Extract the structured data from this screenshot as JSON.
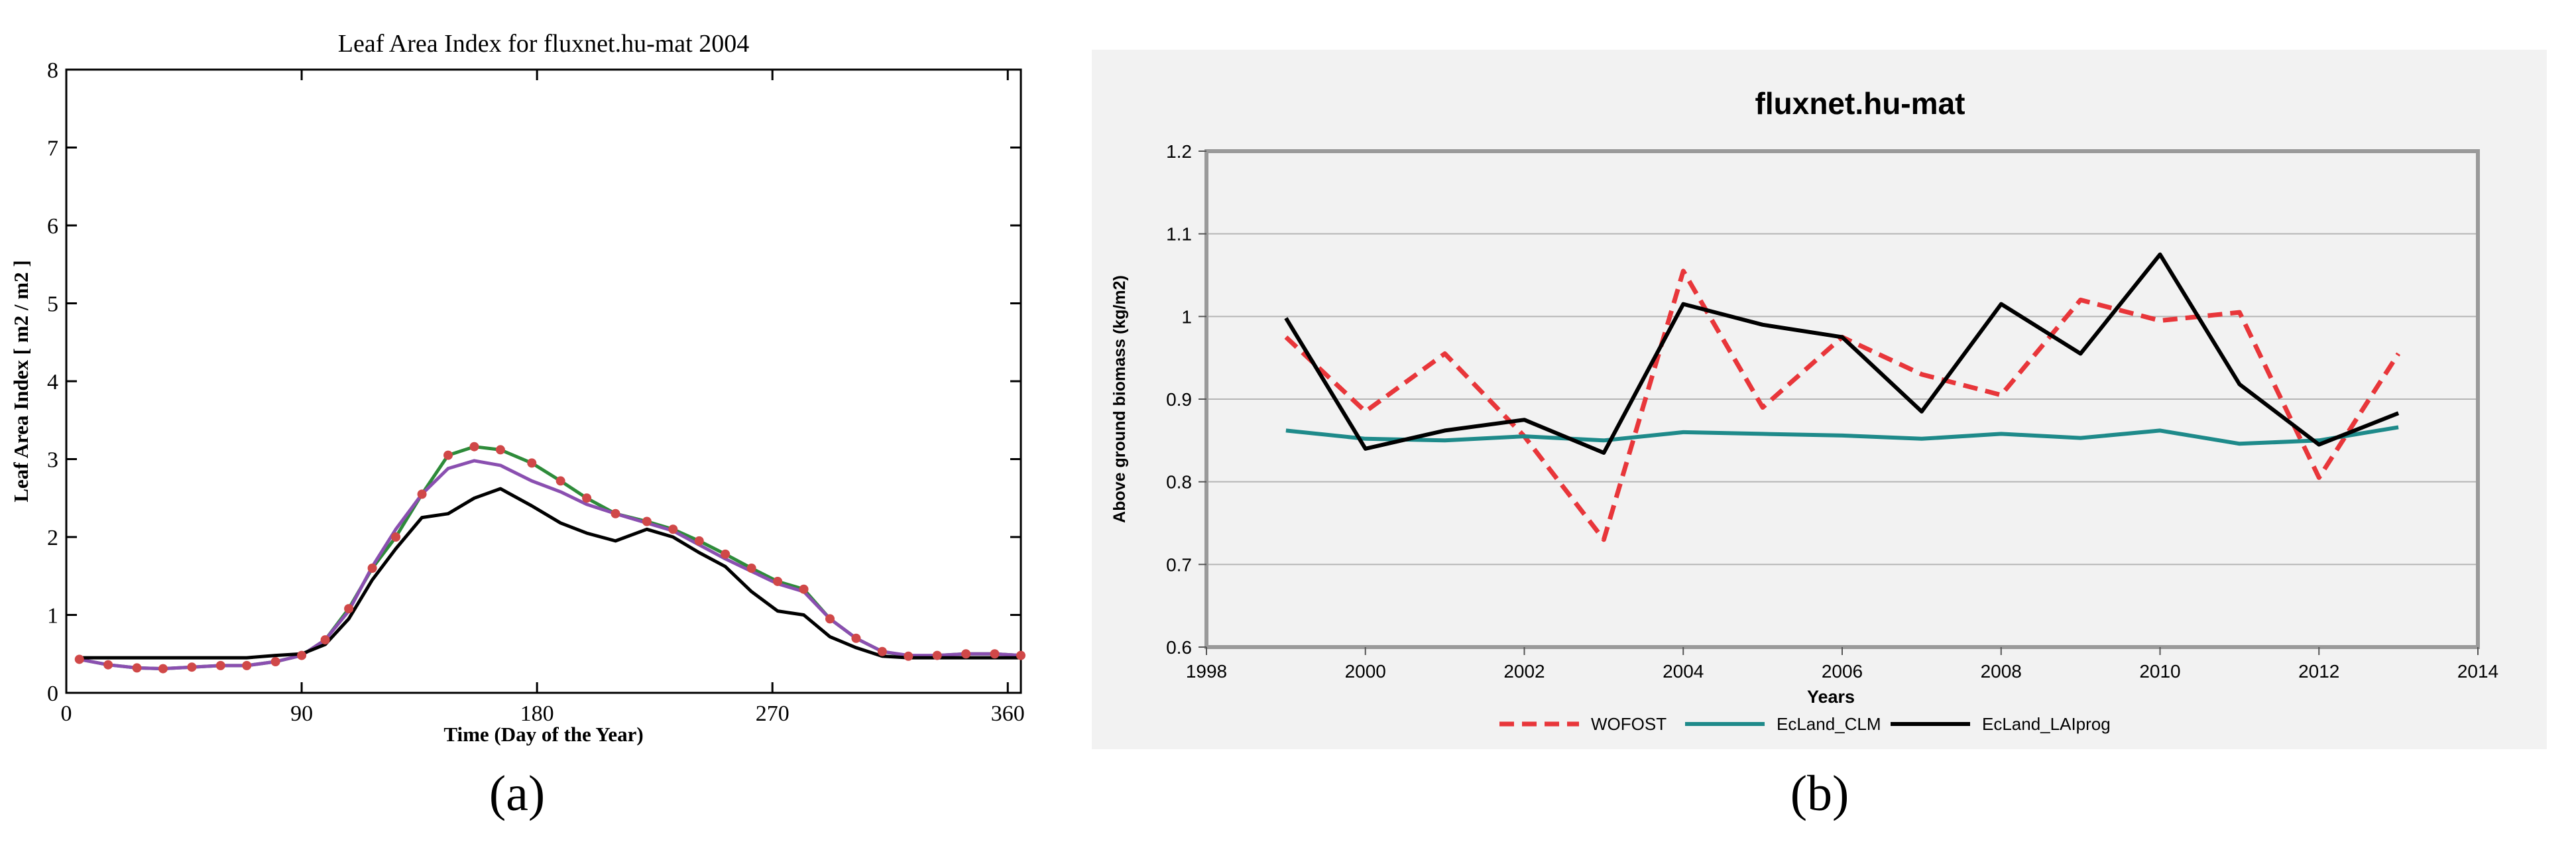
{
  "chart_data": [
    {
      "type": "line",
      "panel_label": "(a)",
      "title": "Leaf Area Index for fluxnet.hu-mat 2004",
      "xlabel": "Time (Day of the Year)",
      "ylabel": "Leaf Area Index [ m2 / m2 ]",
      "xlim": [
        0,
        365
      ],
      "ylim": [
        0,
        8
      ],
      "xticks": [
        "0",
        "90",
        "180",
        "270",
        "360"
      ],
      "yticks": [
        "0",
        "1",
        "2",
        "3",
        "4",
        "5",
        "6",
        "7",
        "8"
      ],
      "legend": "none",
      "series": [
        {
          "name": "green-markers",
          "color": "#2e8b3a",
          "marker": "circle",
          "marker_color": "#d04848",
          "x": [
            5,
            16,
            27,
            37,
            48,
            59,
            69,
            80,
            90,
            99,
            108,
            117,
            126,
            136,
            146,
            156,
            166,
            178,
            189,
            199,
            210,
            222,
            232,
            242,
            252,
            262,
            272,
            282,
            292,
            302,
            312,
            322,
            333,
            344,
            355,
            365
          ],
          "values": [
            0.43,
            0.36,
            0.32,
            0.31,
            0.33,
            0.35,
            0.35,
            0.4,
            0.48,
            0.68,
            1.08,
            1.6,
            2.0,
            2.55,
            3.05,
            3.16,
            3.12,
            2.95,
            2.72,
            2.5,
            2.3,
            2.2,
            2.1,
            1.95,
            1.78,
            1.6,
            1.43,
            1.33,
            0.95,
            0.7,
            0.53,
            0.47,
            0.48,
            0.5,
            0.5,
            0.48
          ]
        },
        {
          "name": "purple",
          "color": "#8a4fb0",
          "x": [
            5,
            16,
            27,
            37,
            48,
            59,
            69,
            80,
            90,
            99,
            108,
            117,
            126,
            136,
            146,
            156,
            166,
            178,
            189,
            199,
            210,
            222,
            232,
            242,
            252,
            262,
            272,
            282,
            292,
            302,
            312,
            322,
            333,
            344,
            355,
            365
          ],
          "values": [
            0.43,
            0.36,
            0.32,
            0.31,
            0.33,
            0.35,
            0.35,
            0.4,
            0.48,
            0.68,
            1.05,
            1.62,
            2.1,
            2.55,
            2.88,
            2.98,
            2.92,
            2.72,
            2.58,
            2.42,
            2.3,
            2.18,
            2.08,
            1.9,
            1.72,
            1.56,
            1.4,
            1.3,
            0.95,
            0.7,
            0.53,
            0.48,
            0.48,
            0.5,
            0.5,
            0.48
          ]
        },
        {
          "name": "black",
          "color": "#000000",
          "x": [
            5,
            16,
            27,
            37,
            48,
            59,
            69,
            80,
            90,
            99,
            108,
            117,
            126,
            136,
            146,
            156,
            166,
            178,
            189,
            199,
            210,
            222,
            232,
            242,
            252,
            262,
            272,
            282,
            292,
            302,
            312,
            322,
            333,
            344,
            355,
            365
          ],
          "values": [
            0.45,
            0.45,
            0.45,
            0.45,
            0.45,
            0.45,
            0.45,
            0.48,
            0.5,
            0.62,
            0.95,
            1.45,
            1.85,
            2.25,
            2.3,
            2.5,
            2.62,
            2.4,
            2.18,
            2.05,
            1.95,
            2.1,
            2.0,
            1.8,
            1.62,
            1.3,
            1.05,
            1.0,
            0.72,
            0.58,
            0.47,
            0.45,
            0.45,
            0.45,
            0.45,
            0.45
          ]
        }
      ]
    },
    {
      "type": "line",
      "panel_label": "(b)",
      "title": "fluxnet.hu-mat",
      "xlabel": "Years",
      "ylabel": "Above ground biomass (kg/m2)",
      "xlim": [
        1998,
        2014
      ],
      "ylim": [
        0.6,
        1.2
      ],
      "xticks": [
        "1998",
        "2000",
        "2002",
        "2004",
        "2006",
        "2008",
        "2010",
        "2012",
        "2014"
      ],
      "yticks": [
        "0.6",
        "0.7",
        "0.8",
        "0.9",
        "1",
        "1.1",
        "1.2"
      ],
      "grid": true,
      "legend": "bottom",
      "categories": [
        1999,
        2000,
        2001,
        2002,
        2003,
        2004,
        2005,
        2006,
        2007,
        2008,
        2009,
        2010,
        2011,
        2012,
        2013
      ],
      "series": [
        {
          "name": "WOFOST",
          "color": "#e8363a",
          "style": "dashed",
          "values": [
            0.975,
            0.885,
            0.955,
            0.855,
            0.73,
            1.055,
            0.89,
            0.975,
            0.93,
            0.905,
            1.02,
            0.995,
            1.005,
            0.805,
            0.955
          ]
        },
        {
          "name": "EcLand_CLM",
          "color": "#1e8a8a",
          "style": "solid",
          "values": [
            0.862,
            0.852,
            0.85,
            0.855,
            0.85,
            0.86,
            0.858,
            0.856,
            0.852,
            0.858,
            0.853,
            0.862,
            0.846,
            0.85,
            0.866
          ]
        },
        {
          "name": "EcLand_LAIprog",
          "color": "#000000",
          "style": "solid",
          "values": [
            0.998,
            0.84,
            0.862,
            0.875,
            0.835,
            1.015,
            0.99,
            0.975,
            0.885,
            1.015,
            0.955,
            1.075,
            0.918,
            0.845,
            0.883
          ]
        }
      ]
    }
  ]
}
